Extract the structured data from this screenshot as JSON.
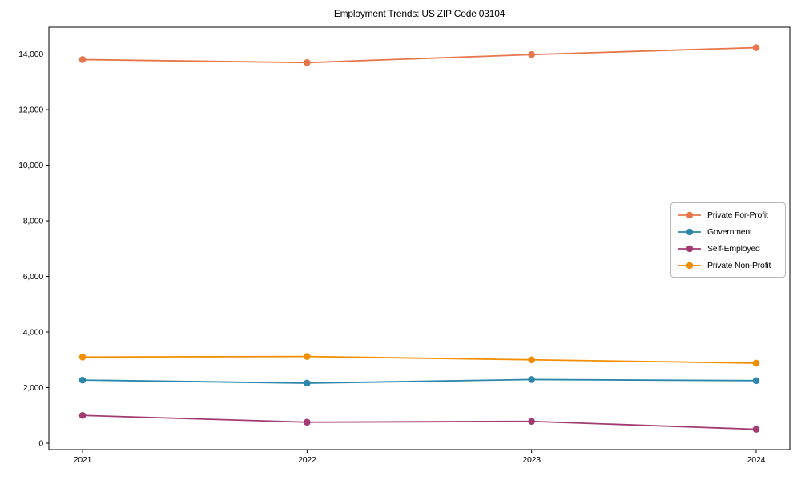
{
  "title": "Employment Trends: US ZIP Code 03104",
  "chart_data": {
    "type": "line",
    "title": "Employment Trends: US ZIP Code 03104",
    "xlabel": "",
    "ylabel": "",
    "x": [
      2021,
      2022,
      2023,
      2024
    ],
    "series": [
      {
        "name": "Private For-Profit",
        "color": "#E8764B",
        "values": [
          13800,
          13690,
          13980,
          14230
        ]
      },
      {
        "name": "Government",
        "color": "#2E86AB",
        "values": [
          2270,
          2160,
          2290,
          2250
        ]
      },
      {
        "name": "Self-Employed",
        "color": "#A23B72",
        "values": [
          1000,
          755,
          785,
          500
        ]
      },
      {
        "name": "Private Non-Profit",
        "color": "#F18F01",
        "values": [
          3100,
          3120,
          3000,
          2880
        ]
      }
    ],
    "xlim": [
      2020.85,
      2024.15
    ],
    "ylim": [
      -230,
      14965
    ],
    "xticks": [
      2021,
      2022,
      2023,
      2024
    ],
    "xtick_labels": [
      "2021",
      "2022",
      "2023",
      "2024"
    ],
    "yticks": [
      0,
      2000,
      4000,
      6000,
      8000,
      10000,
      12000,
      14000
    ],
    "ytick_labels": [
      "0",
      "2,000",
      "4,000",
      "6,000",
      "8,000",
      "10,000",
      "12,000",
      "14,000"
    ],
    "grid": false,
    "legend_position": "center-right",
    "marker": "circle",
    "spine_color": "#000000",
    "background_color": "#ffffff"
  }
}
